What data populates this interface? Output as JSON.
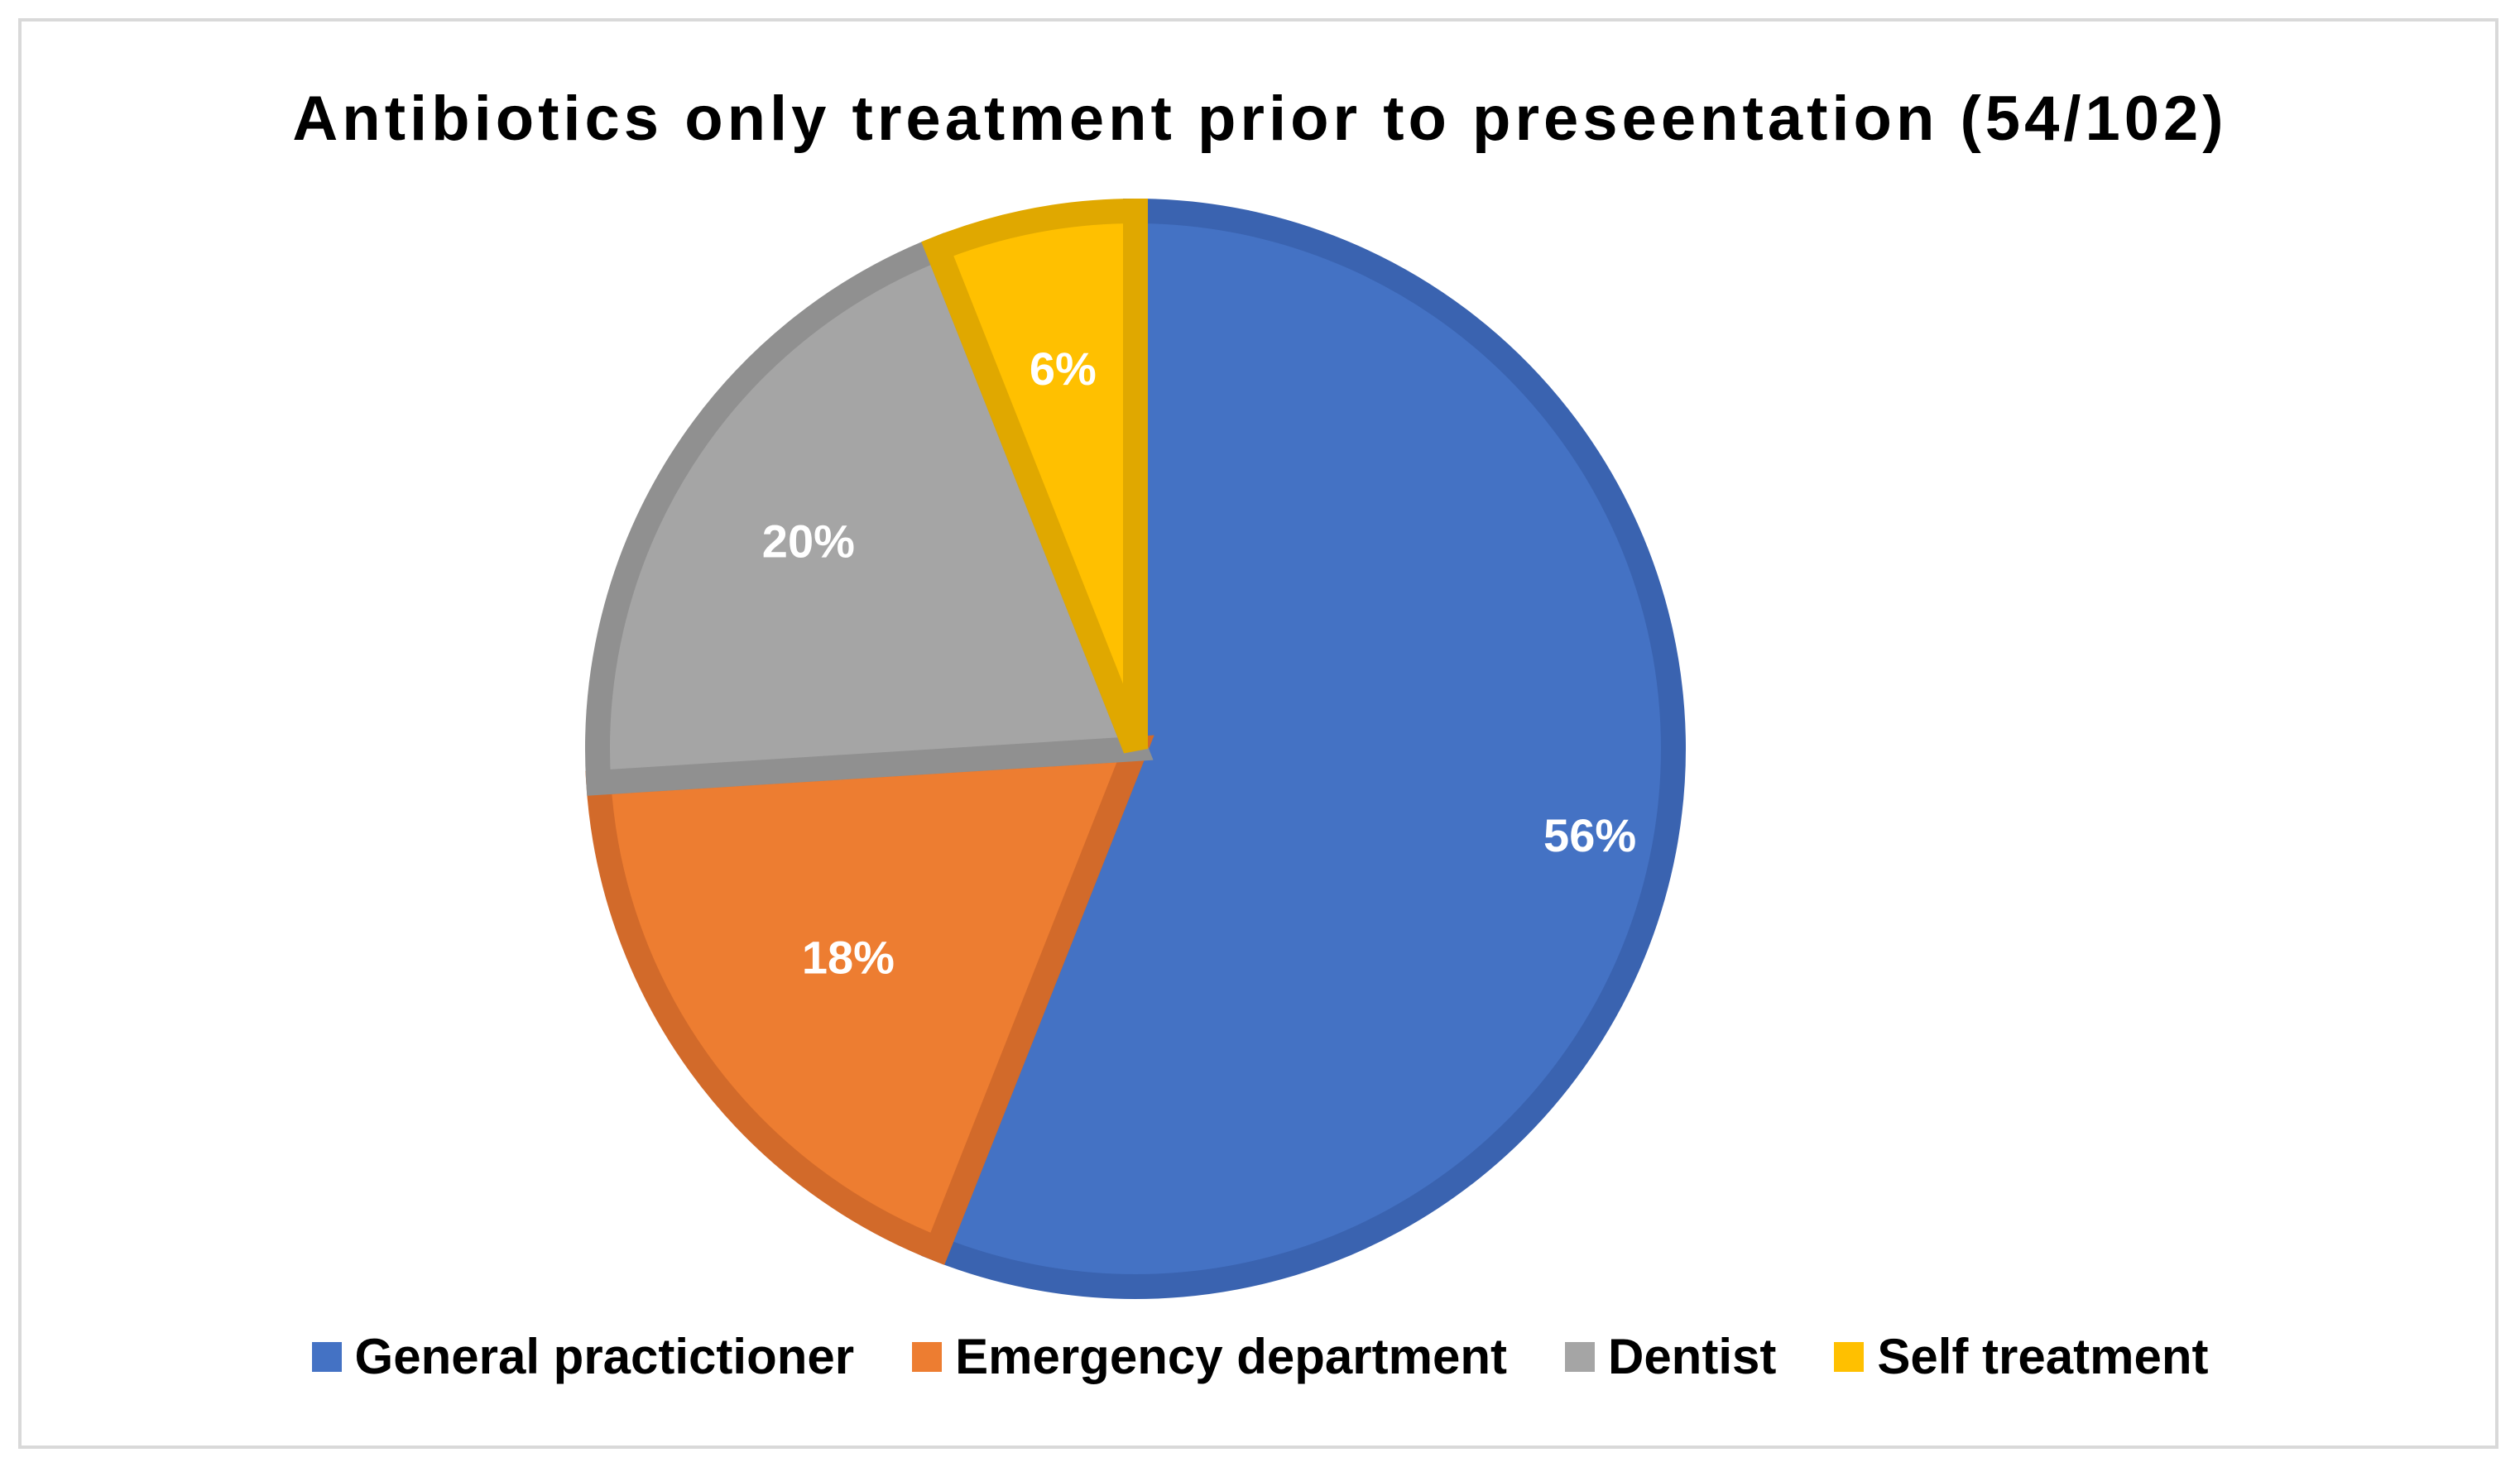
{
  "chart_data": {
    "type": "pie",
    "title": "Antibiotics only treatment prior to preseentation (54/102)",
    "slices": [
      {
        "name": "General practictioner",
        "value": 56,
        "label": "56%",
        "color": "#4472c4",
        "border": "#3a63b0"
      },
      {
        "name": "Emergency department",
        "value": 18,
        "label": "18%",
        "color": "#ed7d31",
        "border": "#d26a2a"
      },
      {
        "name": "Dentist",
        "value": 20,
        "label": "20%",
        "color": "#a5a5a5",
        "border": "#909090"
      },
      {
        "name": "Self treatment",
        "value": 6,
        "label": "6%",
        "color": "#ffc000",
        "border": "#e0a800"
      }
    ],
    "start_angle_deg": 0,
    "direction": "clockwise",
    "legend_position": "bottom"
  }
}
